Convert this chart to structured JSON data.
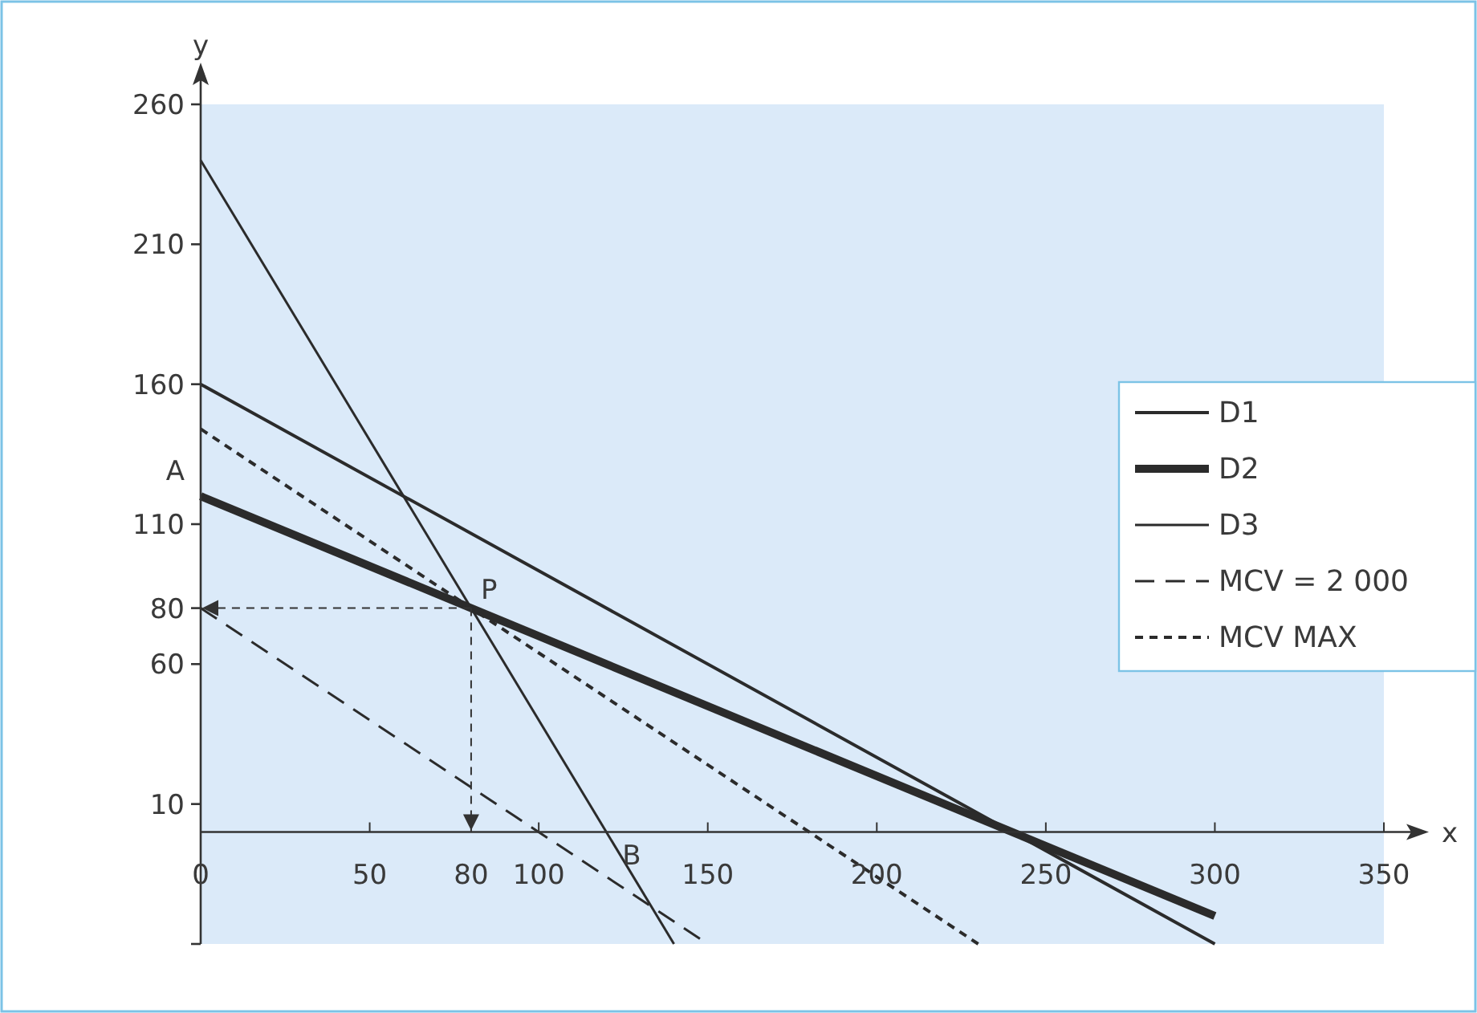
{
  "chart_data": {
    "type": "line",
    "xlabel": "x",
    "ylabel": "y",
    "xlim": [
      0,
      350
    ],
    "ylim": [
      -40,
      260
    ],
    "xticks": [
      0,
      50,
      80,
      100,
      150,
      200,
      250,
      300,
      350
    ],
    "yticks": [
      {
        "value": -40,
        "label": null
      },
      10,
      60,
      80,
      110,
      160,
      210,
      260
    ],
    "legend": "right",
    "grid": false,
    "marker": "none",
    "series": [
      {
        "name": "D1",
        "color": "#2b2b2b",
        "x": [
          0,
          300
        ],
        "values": [
          160,
          -40
        ],
        "line_style": "solid"
      },
      {
        "name": "D2",
        "color": "#2b2b2b",
        "x": [
          0,
          300
        ],
        "values": [
          120,
          -30
        ],
        "line_style": "solid"
      },
      {
        "name": "D3",
        "color": "#2b2b2b",
        "x": [
          0,
          140
        ],
        "values": [
          240,
          -40
        ],
        "line_style": "solid"
      },
      {
        "name": "MCV = 2 000",
        "color": "#2b2b2b",
        "x": [
          0,
          150
        ],
        "values": [
          80,
          -40
        ],
        "line_style": "dashed"
      },
      {
        "name": "MCV MAX",
        "color": "#2b2b2b",
        "x": [
          0,
          230
        ],
        "values": [
          144,
          -40
        ],
        "line_style": "dotted"
      }
    ],
    "annotations": [
      {
        "text": "A",
        "x": 0,
        "y": 120
      },
      {
        "text": "P",
        "x": 80,
        "y": 80
      },
      {
        "text": "B",
        "x": 120,
        "y": 0
      }
    ]
  }
}
